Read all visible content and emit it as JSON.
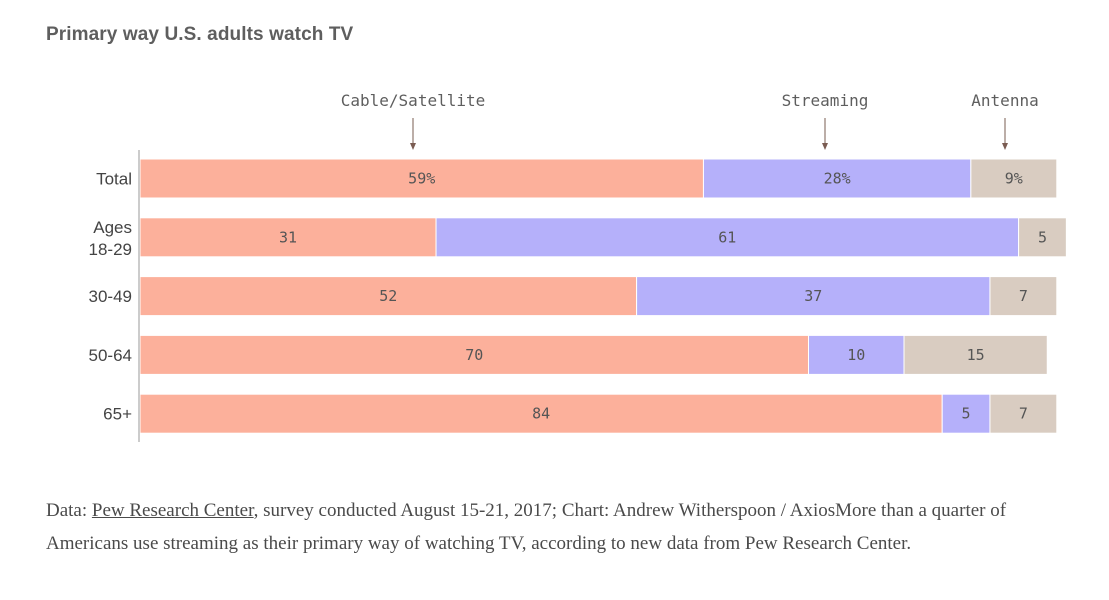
{
  "title": "Primary way U.S. adults watch TV",
  "chart_data": {
    "type": "bar",
    "orientation": "horizontal",
    "stacked": true,
    "categories": [
      "Total",
      "Ages 18-29",
      "30-49",
      "50-64",
      "65+"
    ],
    "series": [
      {
        "name": "Cable/Satellite",
        "color": "#fcb09b",
        "values": [
          59,
          31,
          52,
          70,
          84
        ],
        "labels": [
          "59%",
          "31",
          "52",
          "70",
          "84"
        ]
      },
      {
        "name": "Streaming",
        "color": "#b5b0fa",
        "values": [
          28,
          61,
          37,
          10,
          5
        ],
        "labels": [
          "28%",
          "61",
          "37",
          "10",
          "5"
        ]
      },
      {
        "name": "Antenna",
        "color": "#d9ccc1",
        "values": [
          9,
          5,
          7,
          15,
          7
        ],
        "labels": [
          "9%",
          "5",
          "7",
          "15",
          "7"
        ]
      }
    ],
    "xlim": [
      0,
      100
    ],
    "grid": false,
    "legend": "top, annotated with arrows"
  },
  "footer": {
    "prefix": "Data: ",
    "link_text": "Pew Research Center",
    "rest": ", survey conducted August 15-21, 2017; Chart: Andrew Witherspoon / AxiosMore than a quarter of Americans use streaming as their primary way of watching TV, according to new data from Pew Research Center."
  }
}
